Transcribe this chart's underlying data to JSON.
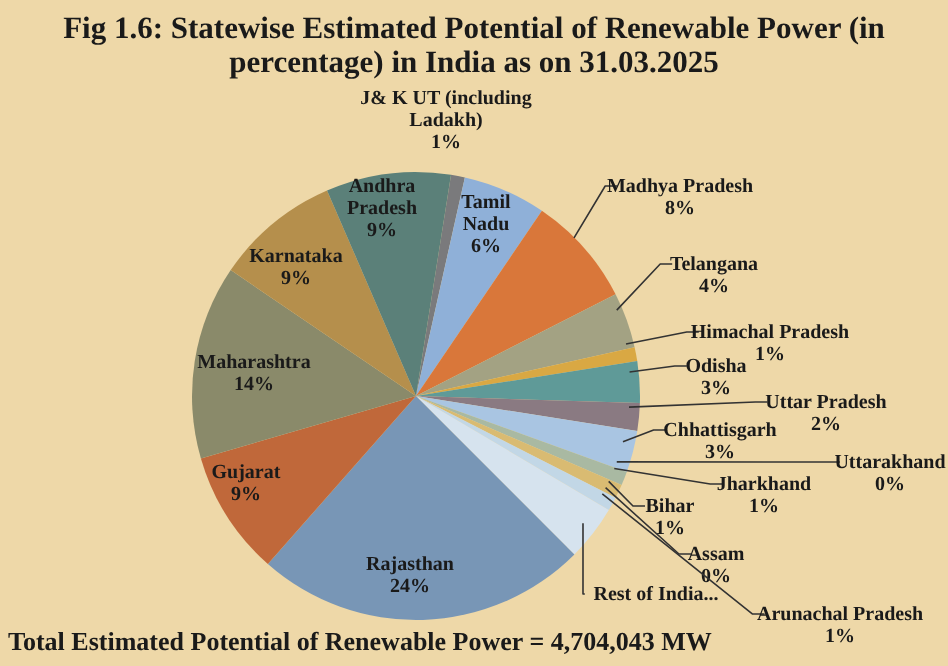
{
  "chart_data": {
    "type": "pie",
    "title": "Fig 1.6: Statewise Estimated Potential of Renewable Power (in percentage) in  India as on 31.03.2025",
    "categories": [
      "J& K UT (including Ladakh)",
      "Tamil Nadu",
      "Madhya Pradesh",
      "Telangana",
      "Himachal Pradesh",
      "Odisha",
      "Uttar Pradesh",
      "Chhattisgarh",
      "Uttarakhand",
      "Jharkhand",
      "Bihar",
      "Assam",
      "Arunachal Pradesh",
      "Rest of India...",
      "Rajasthan",
      "Gujarat",
      "Maharashtra",
      "Karnataka",
      "Andhra Pradesh"
    ],
    "values": [
      1,
      6,
      8,
      4,
      1,
      3,
      2,
      3,
      0,
      1,
      1,
      0,
      1,
      4,
      24,
      9,
      14,
      9,
      9
    ],
    "value_labels": [
      "1%",
      "6%",
      "8%",
      "4%",
      "1%",
      "3%",
      "2%",
      "3%",
      "0%",
      "1%",
      "1%",
      "0%",
      "1%",
      null,
      "24%",
      "9%",
      "14%",
      "9%",
      "9%"
    ],
    "colors": [
      "#7a7a7c",
      "#8fb0d8",
      "#d9773a",
      "#a3a283",
      "#d9a843",
      "#5f9a98",
      "#8a7a82",
      "#a9c5e2",
      "#e3a487",
      "#a9b9a2",
      "#d9bb72",
      "#a0a2ab",
      "#c2d7e6",
      "#d6e3ee",
      "#7896b6",
      "#c0683a",
      "#8a8a6a",
      "#b58f4c",
      "#5b8079"
    ],
    "annotations": [
      "Total Estimated Potential of Renewable Power = 4,704,043  MW"
    ]
  }
}
